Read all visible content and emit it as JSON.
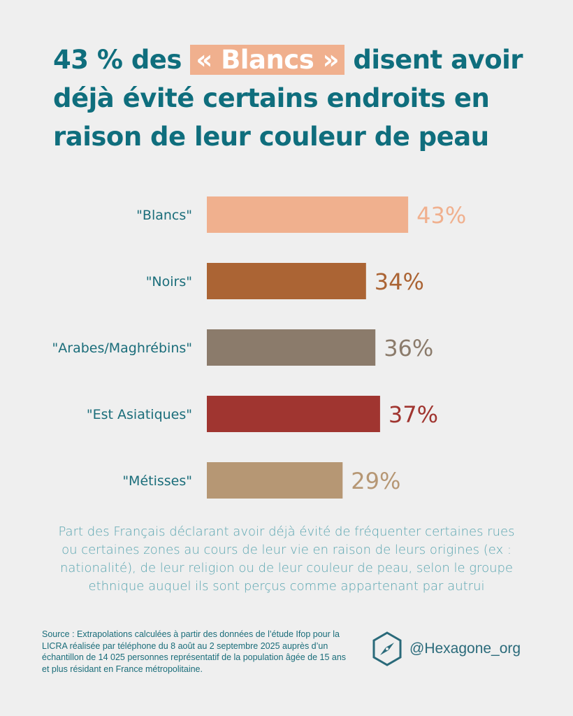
{
  "title": {
    "before": "43 % des ",
    "highlight": "« Blancs »",
    "after": " disent avoir déjà évité certains endroits en raison de leur couleur de peau"
  },
  "chart_data": {
    "type": "bar",
    "orientation": "horizontal",
    "categories": [
      "\"Blancs\"",
      "\"Noirs\"",
      "\"Arabes/Maghrébins\"",
      "\"Est Asiatiques\"",
      "\"Métisses\""
    ],
    "values": [
      43,
      34,
      36,
      37,
      29
    ],
    "value_labels": [
      "43%",
      "34%",
      "36%",
      "37%",
      "29%"
    ],
    "colors": [
      "#f0b08e",
      "#ab6434",
      "#8b7b6b",
      "#a03530",
      "#b69774"
    ],
    "unit": "%",
    "xlim": [
      0,
      100
    ]
  },
  "caption": "Part des Français déclarant avoir déjà évité de fréquenter certaines rues ou certaines zones au cours de leur vie en raison de leurs origines (ex : nationalité), de leur religion ou de leur couleur de peau, selon le groupe ethnique auquel ils sont perçus comme appartenant par autrui",
  "source": "Source : Extrapolations calculées à partir des données de l’étude Ifop pour la LICRA réalisée par téléphone du 8 août au 2 septembre 2025 auprès d’un échantillon de 14 025 personnes représentatif de la population âgée de 15 ans et plus résidant en France métropolitaine.",
  "brand": {
    "handle": "@Hexagone_org",
    "icon": "hexagon-compass-icon"
  }
}
